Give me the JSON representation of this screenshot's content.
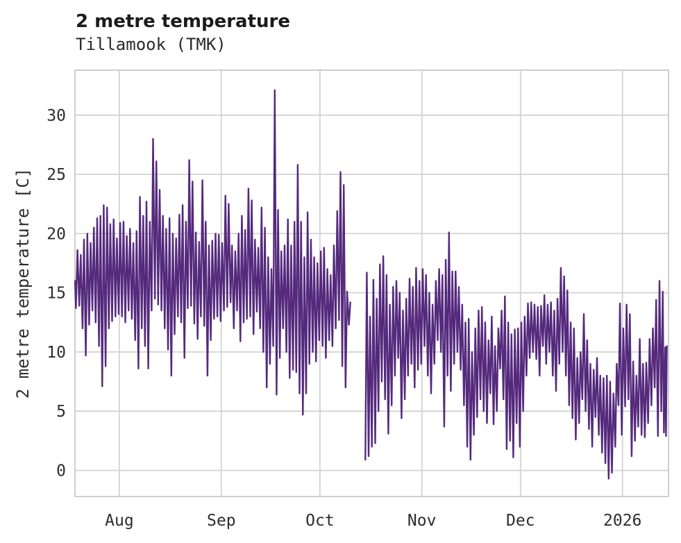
{
  "header": {
    "title": "2 metre temperature",
    "subtitle": "Tillamook (TMK)"
  },
  "chart_data": {
    "type": "line",
    "title": "2 metre temperature",
    "subtitle": "Tillamook (TMK)",
    "station": "Tillamook (TMK)",
    "ylabel": "2 metre temperature [C]",
    "xlabel": "",
    "grid": true,
    "legend": "none",
    "line_color": "#552a7d",
    "grid_color": "#d2d2d2",
    "spine_color": "#c9c9c9",
    "y_ticks": [
      0,
      5,
      10,
      15,
      20,
      25,
      30
    ],
    "ylim": [
      -2.2,
      33.8
    ],
    "x_tick_labels": [
      "Aug",
      "Sep",
      "Oct",
      "Nov",
      "Dec",
      "2026"
    ],
    "x_tick_days": [
      13.5,
      44.5,
      74.5,
      105.5,
      135.5,
      166.5
    ],
    "xlim_days": [
      0,
      180.5
    ],
    "x_day0_date": "2025-07-18",
    "gap_days": "indices 84-87 (mid October) have no data",
    "sampling_note": "daily minimum/maximum envelope in deg C estimated from plot; one [min,max] pair per day starting ~Jul 18",
    "daily_min_max": [
      [
        13.7,
        18.6
      ],
      [
        13.9,
        18.2
      ],
      [
        12.0,
        19.5
      ],
      [
        9.7,
        20.0
      ],
      [
        12.3,
        19.2
      ],
      [
        13.5,
        20.5
      ],
      [
        12.5,
        21.3
      ],
      [
        10.5,
        21.5
      ],
      [
        7.1,
        22.4
      ],
      [
        8.8,
        22.2
      ],
      [
        12.0,
        20.8
      ],
      [
        12.6,
        21.2
      ],
      [
        13.0,
        19.6
      ],
      [
        13.2,
        20.9
      ],
      [
        13.0,
        21.0
      ],
      [
        12.5,
        19.8
      ],
      [
        13.5,
        20.4
      ],
      [
        12.8,
        19.2
      ],
      [
        11.0,
        20.2
      ],
      [
        8.6,
        23.1
      ],
      [
        12.0,
        21.5
      ],
      [
        10.5,
        22.7
      ],
      [
        8.6,
        21.0
      ],
      [
        13.5,
        28.0
      ],
      [
        14.5,
        26.1
      ],
      [
        14.0,
        23.7
      ],
      [
        13.5,
        21.5
      ],
      [
        12.0,
        20.4
      ],
      [
        10.2,
        21.3
      ],
      [
        8.0,
        20.0
      ],
      [
        11.5,
        19.6
      ],
      [
        13.0,
        21.6
      ],
      [
        12.5,
        22.4
      ],
      [
        9.5,
        21.0
      ],
      [
        13.7,
        26.2
      ],
      [
        13.9,
        24.4
      ],
      [
        12.4,
        20.1
      ],
      [
        11.1,
        19.3
      ],
      [
        13.0,
        24.5
      ],
      [
        12.2,
        21.0
      ],
      [
        8.0,
        19.0
      ],
      [
        11.0,
        19.4
      ],
      [
        12.8,
        20.0
      ],
      [
        13.0,
        19.9
      ],
      [
        12.6,
        19.2
      ],
      [
        13.5,
        23.2
      ],
      [
        13.8,
        22.5
      ],
      [
        14.2,
        19.0
      ],
      [
        12.0,
        18.5
      ],
      [
        13.5,
        20.0
      ],
      [
        10.9,
        21.5
      ],
      [
        12.5,
        20.3
      ],
      [
        12.8,
        23.8
      ],
      [
        13.0,
        22.8
      ],
      [
        11.5,
        19.5
      ],
      [
        13.4,
        18.8
      ],
      [
        12.0,
        22.2
      ],
      [
        10.0,
        20.5
      ],
      [
        7.0,
        18.0
      ],
      [
        9.0,
        17.0
      ],
      [
        10.5,
        32.1
      ],
      [
        6.4,
        22.0
      ],
      [
        9.5,
        18.5
      ],
      [
        12.0,
        19.0
      ],
      [
        10.0,
        21.2
      ],
      [
        7.8,
        19.0
      ],
      [
        8.5,
        21.0
      ],
      [
        8.3,
        25.8
      ],
      [
        6.5,
        21.0
      ],
      [
        4.7,
        18.0
      ],
      [
        6.5,
        21.8
      ],
      [
        9.0,
        19.5
      ],
      [
        10.0,
        18.0
      ],
      [
        9.2,
        17.5
      ],
      [
        11.0,
        18.5
      ],
      [
        10.5,
        18.8
      ],
      [
        9.5,
        17.0
      ],
      [
        11.0,
        16.5
      ],
      [
        10.5,
        19.0
      ],
      [
        12.0,
        21.9
      ],
      [
        12.7,
        25.2
      ],
      [
        8.8,
        24.1
      ],
      [
        7.0,
        15.1
      ],
      [
        12.3,
        14.2
      ],
      null,
      null,
      null,
      null,
      [
        0.9,
        16.7
      ],
      [
        1.2,
        13.0
      ],
      [
        2.0,
        16.1
      ],
      [
        2.3,
        14.5
      ],
      [
        5.0,
        17.4
      ],
      [
        7.5,
        18.1
      ],
      [
        6.0,
        16.5
      ],
      [
        3.1,
        14.0
      ],
      [
        5.5,
        15.5
      ],
      [
        8.0,
        16.0
      ],
      [
        9.5,
        15.0
      ],
      [
        4.4,
        13.5
      ],
      [
        6.0,
        14.5
      ],
      [
        8.0,
        16.2
      ],
      [
        9.0,
        15.5
      ],
      [
        7.0,
        17.1
      ],
      [
        8.5,
        16.0
      ],
      [
        9.0,
        17.0
      ],
      [
        10.5,
        16.5
      ],
      [
        8.0,
        15.0
      ],
      [
        6.5,
        14.0
      ],
      [
        9.0,
        16.0
      ],
      [
        11.0,
        17.0
      ],
      [
        10.0,
        16.5
      ],
      [
        3.7,
        17.8
      ],
      [
        8.0,
        20.1
      ],
      [
        6.7,
        16.8
      ],
      [
        9.0,
        16.8
      ],
      [
        10.0,
        15.5
      ],
      [
        8.5,
        14.0
      ],
      [
        5.5,
        12.5
      ],
      [
        2.0,
        12.8
      ],
      [
        0.9,
        10.0
      ],
      [
        3.0,
        12.0
      ],
      [
        4.5,
        13.5
      ],
      [
        6.0,
        13.8
      ],
      [
        5.0,
        12.5
      ],
      [
        4.0,
        11.0
      ],
      [
        6.5,
        13.0
      ],
      [
        3.9,
        10.5
      ],
      [
        5.0,
        12.0
      ],
      [
        8.6,
        13.5
      ],
      [
        6.0,
        14.7
      ],
      [
        1.8,
        12.5
      ],
      [
        2.5,
        11.5
      ],
      [
        1.1,
        11.9
      ],
      [
        4.0,
        12.0
      ],
      [
        2.0,
        12.5
      ],
      [
        5.0,
        13.0
      ],
      [
        8.0,
        14.1
      ],
      [
        9.5,
        14.2
      ],
      [
        10.0,
        14.0
      ],
      [
        9.4,
        13.8
      ],
      [
        8.0,
        13.9
      ],
      [
        10.5,
        14.8
      ],
      [
        9.0,
        14.0
      ],
      [
        10.0,
        14.2
      ],
      [
        8.0,
        13.5
      ],
      [
        6.7,
        14.5
      ],
      [
        9.0,
        17.1
      ],
      [
        10.0,
        16.4
      ],
      [
        8.0,
        15.2
      ],
      [
        5.5,
        12.5
      ],
      [
        4.4,
        12.0
      ],
      [
        2.6,
        9.5
      ],
      [
        4.0,
        10.0
      ],
      [
        6.0,
        13.2
      ],
      [
        5.0,
        11.0
      ],
      [
        3.5,
        9.0
      ],
      [
        2.0,
        8.5
      ],
      [
        4.5,
        9.5
      ],
      [
        3.0,
        8.0
      ],
      [
        1.5,
        7.8
      ],
      [
        0.6,
        8.0
      ],
      [
        -0.7,
        7.5
      ],
      [
        -0.2,
        6.5
      ],
      [
        2.0,
        9.0
      ],
      [
        5.5,
        14.1
      ],
      [
        3.0,
        12.0
      ],
      [
        5.4,
        14.0
      ],
      [
        6.0,
        13.2
      ],
      [
        1.2,
        9.2
      ],
      [
        2.5,
        8.0
      ],
      [
        3.7,
        11.1
      ],
      [
        3.0,
        9.0
      ],
      [
        2.8,
        9.1
      ],
      [
        4.0,
        11.1
      ],
      [
        5.5,
        12.0
      ],
      [
        7.0,
        14.4
      ],
      [
        2.9,
        16.0
      ],
      [
        5.0,
        15.1
      ]
    ],
    "head_points": [
      [
        0.02,
        16.0
      ]
    ],
    "tail_points": [
      [
        179.1,
        3.2
      ],
      [
        179.5,
        10.4
      ],
      [
        179.75,
        2.9
      ],
      [
        180.0,
        10.5
      ]
    ]
  }
}
